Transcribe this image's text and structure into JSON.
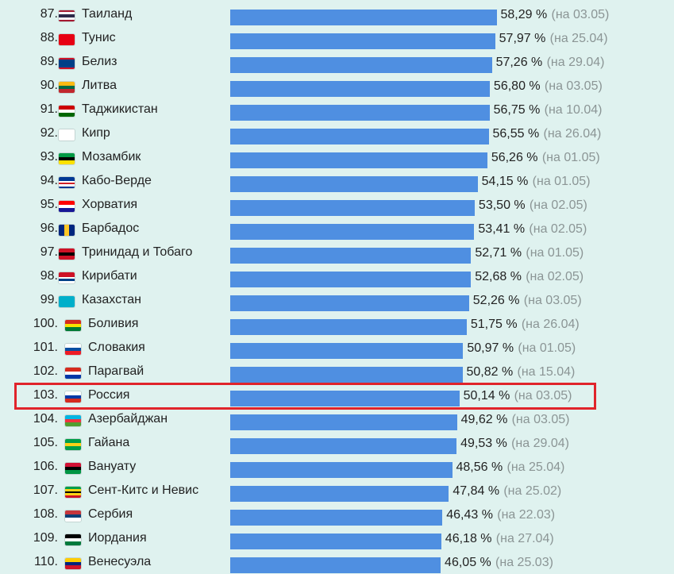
{
  "chart_data": {
    "type": "bar",
    "orientation": "horizontal",
    "xlim": [
      0,
      60
    ],
    "highlighted_rank": "103.",
    "rows": [
      {
        "rank": "87.",
        "country": "Таиланд",
        "value": 58.29,
        "label": "58,29 %",
        "date": "(на 03.05)",
        "flag": [
          "#a51931",
          "#f4f5f8",
          "#2d2a4a",
          "#2d2a4a",
          "#f4f5f8",
          "#a51931"
        ]
      },
      {
        "rank": "88.",
        "country": "Тунис",
        "value": 57.97,
        "label": "57,97 %",
        "date": "(на 25.04)",
        "flag": [
          "#e70013"
        ]
      },
      {
        "rank": "89.",
        "country": "Белиз",
        "value": 57.26,
        "label": "57,26 %",
        "date": "(на 29.04)",
        "flag": [
          "#ce1126",
          "#003f87",
          "#003f87",
          "#003f87",
          "#003f87",
          "#ce1126"
        ]
      },
      {
        "rank": "90.",
        "country": "Литва",
        "value": 56.8,
        "label": "56,80 %",
        "date": "(на 03.05)",
        "flag": [
          "#fdb913",
          "#006a44",
          "#c1272d"
        ]
      },
      {
        "rank": "91.",
        "country": "Таджикистан",
        "value": 56.75,
        "label": "56,75 %",
        "date": "(на 10.04)",
        "flag": [
          "#cc0000",
          "#ffffff",
          "#006600"
        ]
      },
      {
        "rank": "92.",
        "country": "Кипр",
        "value": 56.55,
        "label": "56,55 %",
        "date": "(на 26.04)",
        "flag": [
          "#ffffff"
        ]
      },
      {
        "rank": "93.",
        "country": "Мозамбик",
        "value": 56.26,
        "label": "56,26 %",
        "date": "(на 01.05)",
        "flag": [
          "#009a44",
          "#000000",
          "#fce100"
        ]
      },
      {
        "rank": "94.",
        "country": "Кабо-Верде",
        "value": 54.15,
        "label": "54,15 %",
        "date": "(на 01.05)",
        "flag": [
          "#003893",
          "#003893",
          "#ffffff",
          "#cf2027",
          "#ffffff",
          "#003893"
        ]
      },
      {
        "rank": "95.",
        "country": "Хорватия",
        "value": 53.5,
        "label": "53,50 %",
        "date": "(на 02.05)",
        "flag": [
          "#ff0000",
          "#ffffff",
          "#171796"
        ]
      },
      {
        "rank": "96.",
        "country": "Барбадос",
        "value": 53.41,
        "label": "53,41 %",
        "date": "(на 02.05)",
        "flag": [
          "#00267f",
          "#ffc726",
          "#00267f"
        ],
        "vertical": true
      },
      {
        "rank": "97.",
        "country": "Тринидад и Тобаго",
        "value": 52.71,
        "label": "52,71 %",
        "date": "(на 01.05)",
        "flag": [
          "#ce1126",
          "#000000",
          "#ce1126"
        ]
      },
      {
        "rank": "98.",
        "country": "Кирибати",
        "value": 52.68,
        "label": "52,68 %",
        "date": "(на 02.05)",
        "flag": [
          "#ce1126",
          "#ce1126",
          "#ffffff",
          "#003f87",
          "#ffffff"
        ]
      },
      {
        "rank": "99.",
        "country": "Казахстан",
        "value": 52.26,
        "label": "52,26 %",
        "date": "(на 03.05)",
        "flag": [
          "#00afca"
        ]
      },
      {
        "rank": "100.",
        "country": "Боливия",
        "value": 51.75,
        "label": "51,75 %",
        "date": "(на 26.04)",
        "flag": [
          "#d52b1e",
          "#f9e300",
          "#007934"
        ]
      },
      {
        "rank": "101.",
        "country": "Словакия",
        "value": 50.97,
        "label": "50,97 %",
        "date": "(на 01.05)",
        "flag": [
          "#ffffff",
          "#0b4ea2",
          "#ee1c25"
        ]
      },
      {
        "rank": "102.",
        "country": "Парагвай",
        "value": 50.82,
        "label": "50,82 %",
        "date": "(на 15.04)",
        "flag": [
          "#d52b1e",
          "#ffffff",
          "#0038a8"
        ]
      },
      {
        "rank": "103.",
        "country": "Россия",
        "value": 50.14,
        "label": "50,14 %",
        "date": "(на 03.05)",
        "flag": [
          "#ffffff",
          "#0039a6",
          "#d52b1e"
        ]
      },
      {
        "rank": "104.",
        "country": "Азербайджан",
        "value": 49.62,
        "label": "49,62 %",
        "date": "(на 03.05)",
        "flag": [
          "#00b5e2",
          "#ef3340",
          "#509e2f"
        ]
      },
      {
        "rank": "105.",
        "country": "Гайана",
        "value": 49.53,
        "label": "49,53 %",
        "date": "(на 29.04)",
        "flag": [
          "#009e49",
          "#fcd116",
          "#009e49"
        ]
      },
      {
        "rank": "106.",
        "country": "Вануату",
        "value": 48.56,
        "label": "48,56 %",
        "date": "(на 25.04)",
        "flag": [
          "#d21034",
          "#000000",
          "#009543"
        ]
      },
      {
        "rank": "107.",
        "country": "Сент-Китс и Невис",
        "value": 47.84,
        "label": "47,84 %",
        "date": "(на 25.02)",
        "flag": [
          "#009e49",
          "#fcd116",
          "#000000",
          "#fcd116",
          "#ce1126"
        ]
      },
      {
        "rank": "108.",
        "country": "Сербия",
        "value": 46.43,
        "label": "46,43 %",
        "date": "(на 22.03)",
        "flag": [
          "#c6363c",
          "#0c4076",
          "#ffffff"
        ]
      },
      {
        "rank": "109.",
        "country": "Иордания",
        "value": 46.18,
        "label": "46,18 %",
        "date": "(на 27.04)",
        "flag": [
          "#000000",
          "#ffffff",
          "#007a3d"
        ]
      },
      {
        "rank": "110.",
        "country": "Венесуэла",
        "value": 46.05,
        "label": "46,05 %",
        "date": "(на 25.03)",
        "flag": [
          "#ffcc00",
          "#00247d",
          "#cf142b"
        ]
      }
    ]
  },
  "colors": {
    "background": "#dff2ef",
    "bar": "#4f8fe1",
    "text": "#222222",
    "date_text": "#8b9595",
    "highlight_border": "#e0242b"
  }
}
